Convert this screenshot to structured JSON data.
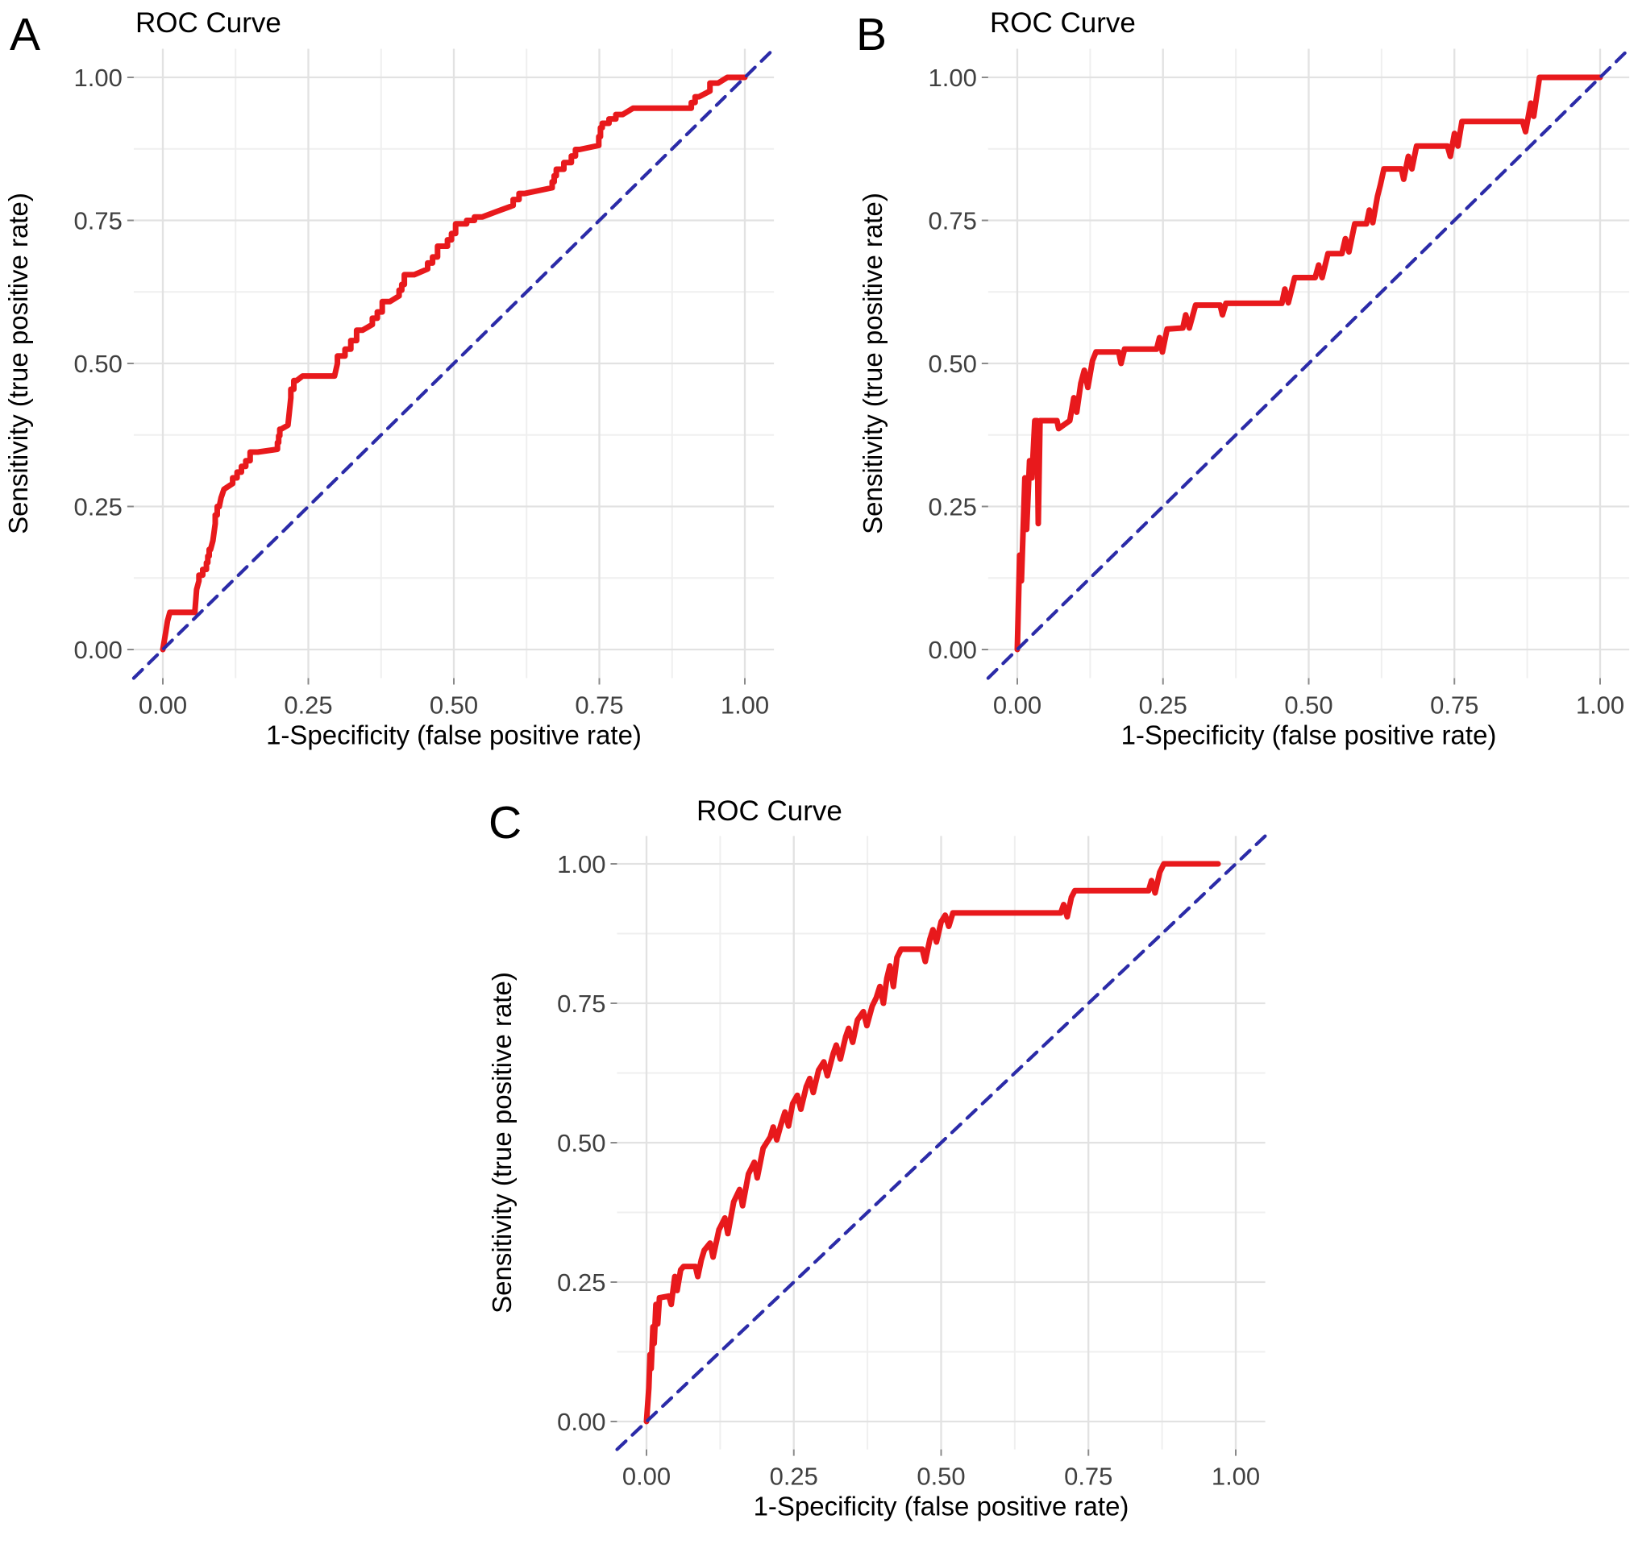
{
  "figure": {
    "background": "#ffffff",
    "description": "Three ROC curve panels labeled A, B and C"
  },
  "colors": {
    "roc_curve": "#e8191c",
    "chance_line": "#2b2ba8",
    "grid_major": "#e2e2e2",
    "grid_minor": "#efefef",
    "tick_mark": "#8a8a8a",
    "tick_text": "#404040",
    "text": "#000000"
  },
  "chart_data": [
    {
      "panel": "A",
      "type": "line",
      "letter": "A",
      "title": "ROC Curve",
      "xlabel": "1-Specificity (false positive rate)",
      "ylabel": "Sensitivity (true positive rate)",
      "xlim": [
        -0.05,
        1.05
      ],
      "ylim": [
        -0.05,
        1.05
      ],
      "grid": "on",
      "legend": "none",
      "interpolation": "step",
      "xticks": [
        0,
        0.25,
        0.5,
        0.75,
        1
      ],
      "yticks": [
        0,
        0.25,
        0.5,
        0.75,
        1
      ],
      "tick_labels": [
        "0.00",
        "0.25",
        "0.50",
        "0.75",
        "1.00"
      ],
      "minor_breaks": [
        0.125,
        0.375,
        0.625,
        0.875
      ],
      "series": [
        {
          "name": "ROC curve",
          "color_key": "roc_curve",
          "style": "solid",
          "points": [
            [
              0,
              0
            ],
            [
              0.005,
              0.03
            ],
            [
              0.008,
              0.05
            ],
            [
              0.012,
              0.065
            ],
            [
              0.055,
              0.065
            ],
            [
              0.058,
              0.105
            ],
            [
              0.062,
              0.12
            ],
            [
              0.075,
              0.14
            ],
            [
              0.082,
              0.175
            ],
            [
              0.086,
              0.19
            ],
            [
              0.09,
              0.22
            ],
            [
              0.097,
              0.25
            ],
            [
              0.1,
              0.265
            ],
            [
              0.105,
              0.28
            ],
            [
              0.12,
              0.29
            ],
            [
              0.135,
              0.31
            ],
            [
              0.15,
              0.33
            ],
            [
              0.163,
              0.345
            ],
            [
              0.197,
              0.35
            ],
            [
              0.203,
              0.385
            ],
            [
              0.215,
              0.392
            ],
            [
              0.22,
              0.44
            ],
            [
              0.23,
              0.47
            ],
            [
              0.24,
              0.478
            ],
            [
              0.295,
              0.478
            ],
            [
              0.3,
              0.5
            ],
            [
              0.313,
              0.513
            ],
            [
              0.323,
              0.525
            ],
            [
              0.333,
              0.54
            ],
            [
              0.343,
              0.558
            ],
            [
              0.36,
              0.568
            ],
            [
              0.377,
              0.59
            ],
            [
              0.39,
              0.608
            ],
            [
              0.406,
              0.618
            ],
            [
              0.415,
              0.638
            ],
            [
              0.432,
              0.655
            ],
            [
              0.455,
              0.665
            ],
            [
              0.472,
              0.686
            ],
            [
              0.489,
              0.705
            ],
            [
              0.503,
              0.727
            ],
            [
              0.522,
              0.744
            ],
            [
              0.549,
              0.756
            ],
            [
              0.575,
              0.766
            ],
            [
              0.602,
              0.776
            ],
            [
              0.622,
              0.797
            ],
            [
              0.669,
              0.807
            ],
            [
              0.676,
              0.828
            ],
            [
              0.702,
              0.851
            ],
            [
              0.716,
              0.874
            ],
            [
              0.749,
              0.881
            ],
            [
              0.755,
              0.912
            ],
            [
              0.79,
              0.935
            ],
            [
              0.808,
              0.946
            ],
            [
              0.908,
              0.946
            ],
            [
              0.921,
              0.966
            ],
            [
              0.94,
              0.976
            ],
            [
              0.954,
              0.99
            ],
            [
              0.97,
              1
            ],
            [
              1,
              1
            ]
          ]
        },
        {
          "name": "chance diagonal",
          "color_key": "chance_line",
          "style": "dashed",
          "points": [
            [
              -0.05,
              -0.05
            ],
            [
              1.05,
              1.05
            ]
          ]
        }
      ]
    },
    {
      "panel": "B",
      "type": "line",
      "letter": "B",
      "title": "ROC Curve",
      "xlabel": "1-Specificity (false positive rate)",
      "ylabel": "Sensitivity (true positive rate)",
      "xlim": [
        -0.05,
        1.05
      ],
      "ylim": [
        -0.05,
        1.05
      ],
      "grid": "on",
      "legend": "none",
      "interpolation": "linear",
      "xticks": [
        0,
        0.25,
        0.5,
        0.75,
        1
      ],
      "yticks": [
        0,
        0.25,
        0.5,
        0.75,
        1
      ],
      "tick_labels": [
        "0.00",
        "0.25",
        "0.50",
        "0.75",
        "1.00"
      ],
      "minor_breaks": [
        0.125,
        0.375,
        0.625,
        0.875
      ],
      "series": [
        {
          "name": "ROC curve",
          "color_key": "roc_curve",
          "style": "solid",
          "points": [
            [
              0,
              0
            ],
            [
              0.004,
              0.165
            ],
            [
              0.007,
              0.12
            ],
            [
              0.013,
              0.3
            ],
            [
              0.016,
              0.21
            ],
            [
              0.021,
              0.33
            ],
            [
              0.025,
              0.3
            ],
            [
              0.03,
              0.4
            ],
            [
              0.034,
              0.4
            ],
            [
              0.036,
              0.22
            ],
            [
              0.039,
              0.4
            ],
            [
              0.068,
              0.4
            ],
            [
              0.071,
              0.386
            ],
            [
              0.09,
              0.4
            ],
            [
              0.097,
              0.44
            ],
            [
              0.102,
              0.415
            ],
            [
              0.109,
              0.465
            ],
            [
              0.115,
              0.488
            ],
            [
              0.121,
              0.458
            ],
            [
              0.129,
              0.505
            ],
            [
              0.135,
              0.52
            ],
            [
              0.174,
              0.52
            ],
            [
              0.178,
              0.5
            ],
            [
              0.184,
              0.525
            ],
            [
              0.239,
              0.525
            ],
            [
              0.244,
              0.545
            ],
            [
              0.249,
              0.52
            ],
            [
              0.257,
              0.56
            ],
            [
              0.284,
              0.562
            ],
            [
              0.289,
              0.585
            ],
            [
              0.295,
              0.562
            ],
            [
              0.306,
              0.602
            ],
            [
              0.348,
              0.602
            ],
            [
              0.352,
              0.585
            ],
            [
              0.358,
              0.605
            ],
            [
              0.454,
              0.605
            ],
            [
              0.459,
              0.63
            ],
            [
              0.465,
              0.606
            ],
            [
              0.476,
              0.65
            ],
            [
              0.511,
              0.65
            ],
            [
              0.517,
              0.672
            ],
            [
              0.523,
              0.65
            ],
            [
              0.533,
              0.692
            ],
            [
              0.557,
              0.692
            ],
            [
              0.563,
              0.718
            ],
            [
              0.569,
              0.695
            ],
            [
              0.579,
              0.744
            ],
            [
              0.599,
              0.744
            ],
            [
              0.604,
              0.768
            ],
            [
              0.61,
              0.746
            ],
            [
              0.618,
              0.792
            ],
            [
              0.623,
              0.812
            ],
            [
              0.629,
              0.84
            ],
            [
              0.659,
              0.84
            ],
            [
              0.663,
              0.822
            ],
            [
              0.671,
              0.862
            ],
            [
              0.677,
              0.84
            ],
            [
              0.685,
              0.88
            ],
            [
              0.738,
              0.88
            ],
            [
              0.743,
              0.862
            ],
            [
              0.75,
              0.902
            ],
            [
              0.756,
              0.88
            ],
            [
              0.763,
              0.923
            ],
            [
              0.867,
              0.923
            ],
            [
              0.872,
              0.905
            ],
            [
              0.881,
              0.955
            ],
            [
              0.886,
              0.932
            ],
            [
              0.896,
              1
            ],
            [
              1,
              1
            ]
          ]
        },
        {
          "name": "chance diagonal",
          "color_key": "chance_line",
          "style": "dashed",
          "points": [
            [
              -0.05,
              -0.05
            ],
            [
              1.05,
              1.05
            ]
          ]
        }
      ]
    },
    {
      "panel": "C",
      "type": "line",
      "letter": "C",
      "title": "ROC Curve",
      "xlabel": "1-Specificity (false positive rate)",
      "ylabel": "Sensitivity (true positive rate)",
      "xlim": [
        -0.05,
        1.05
      ],
      "ylim": [
        -0.05,
        1.05
      ],
      "grid": "on",
      "legend": "none",
      "interpolation": "linear",
      "xticks": [
        0,
        0.25,
        0.5,
        0.75,
        1
      ],
      "yticks": [
        0,
        0.25,
        0.5,
        0.75,
        1
      ],
      "tick_labels": [
        "0.00",
        "0.25",
        "0.50",
        "0.75",
        "1.00"
      ],
      "minor_breaks": [
        0.125,
        0.375,
        0.625,
        0.875
      ],
      "series": [
        {
          "name": "ROC curve",
          "color_key": "roc_curve",
          "style": "solid",
          "points": [
            [
              0,
              0
            ],
            [
              0.004,
              0.06
            ],
            [
              0.006,
              0.12
            ],
            [
              0.008,
              0.095
            ],
            [
              0.011,
              0.17
            ],
            [
              0.013,
              0.14
            ],
            [
              0.016,
              0.21
            ],
            [
              0.019,
              0.175
            ],
            [
              0.022,
              0.222
            ],
            [
              0.038,
              0.225
            ],
            [
              0.042,
              0.21
            ],
            [
              0.048,
              0.26
            ],
            [
              0.052,
              0.235
            ],
            [
              0.058,
              0.272
            ],
            [
              0.063,
              0.278
            ],
            [
              0.083,
              0.278
            ],
            [
              0.087,
              0.26
            ],
            [
              0.093,
              0.29
            ],
            [
              0.098,
              0.307
            ],
            [
              0.108,
              0.32
            ],
            [
              0.113,
              0.295
            ],
            [
              0.123,
              0.344
            ],
            [
              0.133,
              0.365
            ],
            [
              0.138,
              0.337
            ],
            [
              0.148,
              0.394
            ],
            [
              0.158,
              0.416
            ],
            [
              0.163,
              0.387
            ],
            [
              0.173,
              0.444
            ],
            [
              0.183,
              0.465
            ],
            [
              0.188,
              0.437
            ],
            [
              0.198,
              0.49
            ],
            [
              0.21,
              0.51
            ],
            [
              0.215,
              0.528
            ],
            [
              0.221,
              0.505
            ],
            [
              0.228,
              0.532
            ],
            [
              0.235,
              0.555
            ],
            [
              0.241,
              0.53
            ],
            [
              0.248,
              0.57
            ],
            [
              0.256,
              0.585
            ],
            [
              0.262,
              0.56
            ],
            [
              0.271,
              0.6
            ],
            [
              0.277,
              0.615
            ],
            [
              0.283,
              0.59
            ],
            [
              0.292,
              0.63
            ],
            [
              0.301,
              0.645
            ],
            [
              0.307,
              0.62
            ],
            [
              0.317,
              0.66
            ],
            [
              0.322,
              0.675
            ],
            [
              0.329,
              0.65
            ],
            [
              0.338,
              0.69
            ],
            [
              0.343,
              0.705
            ],
            [
              0.35,
              0.68
            ],
            [
              0.358,
              0.72
            ],
            [
              0.368,
              0.735
            ],
            [
              0.374,
              0.71
            ],
            [
              0.383,
              0.745
            ],
            [
              0.39,
              0.76
            ],
            [
              0.396,
              0.78
            ],
            [
              0.402,
              0.75
            ],
            [
              0.408,
              0.795
            ],
            [
              0.413,
              0.817
            ],
            [
              0.419,
              0.78
            ],
            [
              0.425,
              0.832
            ],
            [
              0.432,
              0.847
            ],
            [
              0.468,
              0.847
            ],
            [
              0.473,
              0.825
            ],
            [
              0.481,
              0.865
            ],
            [
              0.486,
              0.882
            ],
            [
              0.492,
              0.86
            ],
            [
              0.5,
              0.896
            ],
            [
              0.507,
              0.908
            ],
            [
              0.513,
              0.888
            ],
            [
              0.52,
              0.912
            ],
            [
              0.703,
              0.912
            ],
            [
              0.708,
              0.927
            ],
            [
              0.714,
              0.905
            ],
            [
              0.721,
              0.94
            ],
            [
              0.727,
              0.952
            ],
            [
              0.852,
              0.952
            ],
            [
              0.857,
              0.97
            ],
            [
              0.863,
              0.948
            ],
            [
              0.871,
              0.985
            ],
            [
              0.878,
              1
            ],
            [
              0.97,
              1
            ]
          ]
        },
        {
          "name": "chance diagonal",
          "color_key": "chance_line",
          "style": "dashed",
          "points": [
            [
              -0.05,
              -0.05
            ],
            [
              1.05,
              1.05
            ]
          ]
        }
      ]
    }
  ]
}
